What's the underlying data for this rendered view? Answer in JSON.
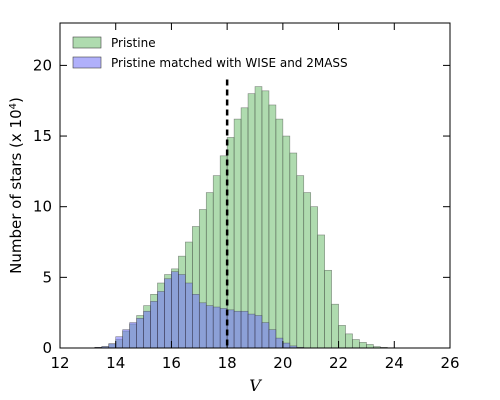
{
  "chart_data": {
    "type": "bar",
    "xlabel": "V",
    "ylabel": "Number of stars (x 10",
    "ylabel_exp": "4",
    "ylabel_end": ")",
    "xlim": [
      12,
      26
    ],
    "ylim": [
      0,
      23
    ],
    "xticks": [
      "12",
      "14",
      "16",
      "18",
      "20",
      "22",
      "24",
      "26"
    ],
    "yticks": [
      "0",
      "5",
      "10",
      "15",
      "20"
    ],
    "bin_width": 0.25,
    "bin_starts": [
      13.25,
      13.5,
      13.75,
      14.0,
      14.25,
      14.5,
      14.75,
      15.0,
      15.25,
      15.5,
      15.75,
      16.0,
      16.25,
      16.5,
      16.75,
      17.0,
      17.25,
      17.5,
      17.75,
      18.0,
      18.25,
      18.5,
      18.75,
      19.0,
      19.25,
      19.5,
      19.75,
      20.0,
      20.25,
      20.5,
      20.75,
      21.0,
      21.25,
      21.5,
      21.75,
      22.0,
      22.25,
      22.5,
      22.75,
      23.0,
      23.25,
      23.5,
      23.75
    ],
    "series": [
      {
        "name": "Pristine",
        "color": "#6dbd6d",
        "values": [
          0.05,
          0.1,
          0.3,
          0.6,
          1.2,
          1.7,
          2.3,
          3.0,
          3.8,
          4.6,
          5.2,
          5.6,
          6.5,
          7.5,
          8.6,
          9.8,
          11.0,
          12.2,
          13.6,
          14.9,
          16.2,
          17.0,
          18.0,
          18.5,
          18.2,
          17.2,
          16.2,
          15.0,
          13.8,
          12.2,
          11.0,
          10.0,
          8.0,
          5.5,
          3.1,
          1.6,
          1.0,
          0.6,
          0.4,
          0.25,
          0.1,
          0.05,
          0.02
        ]
      },
      {
        "name": "Pristine matched with WISE and 2MASS",
        "color": "#7070f8",
        "values": [
          0.05,
          0.1,
          0.3,
          0.8,
          1.3,
          1.8,
          2.1,
          2.6,
          3.3,
          4.0,
          4.9,
          5.4,
          5.2,
          4.6,
          3.8,
          3.2,
          3.0,
          2.9,
          2.8,
          2.7,
          2.6,
          2.6,
          2.4,
          2.3,
          1.8,
          1.3,
          0.7,
          0.35,
          0.15,
          0.05,
          0,
          0,
          0,
          0,
          0,
          0,
          0,
          0,
          0,
          0,
          0,
          0,
          0
        ]
      }
    ],
    "vline": {
      "x": 18,
      "y_top": 19,
      "style": "dashed"
    },
    "legend_position": "top-left"
  }
}
